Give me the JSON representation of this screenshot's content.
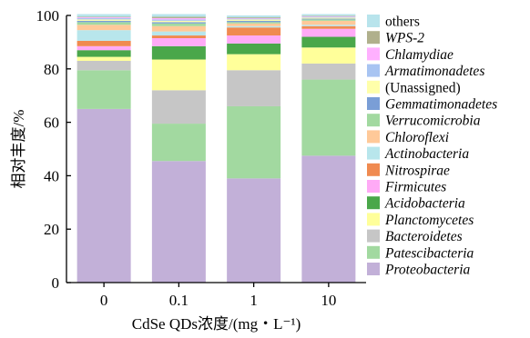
{
  "chart_data": {
    "type": "bar",
    "stacked": true,
    "title": "",
    "xlabel": "CdSe QDs浓度/(mg・L⁻¹)",
    "ylabel": "相对丰度/%",
    "categories": [
      "0",
      "0.1",
      "1",
      "10"
    ],
    "ylim": [
      0,
      100
    ],
    "yticks": [
      "0",
      "20",
      "40",
      "60",
      "80",
      "100"
    ],
    "legend_position": "right",
    "series": [
      {
        "name": "Proteobacteria",
        "italic": true,
        "color": "#c2b0d8",
        "values": [
          65.0,
          45.5,
          39.0,
          47.5
        ]
      },
      {
        "name": "Patescibacteria",
        "italic": true,
        "color": "#a2d9a0",
        "values": [
          14.5,
          14.0,
          27.0,
          28.5
        ]
      },
      {
        "name": "Bacteroidetes",
        "italic": true,
        "color": "#c6c6c6",
        "values": [
          3.5,
          12.5,
          13.5,
          6.0
        ]
      },
      {
        "name": "Planctomycetes",
        "italic": true,
        "color": "#ffff9a",
        "values": [
          1.5,
          11.5,
          6.0,
          6.0
        ]
      },
      {
        "name": "Acidobacteria",
        "italic": true,
        "color": "#4aa74a",
        "values": [
          2.5,
          5.0,
          4.0,
          4.0
        ]
      },
      {
        "name": "Firmicutes",
        "italic": true,
        "color": "#ffaaf6",
        "values": [
          1.5,
          3.0,
          3.0,
          3.0
        ]
      },
      {
        "name": "Nitrospirae",
        "italic": true,
        "color": "#f08a50",
        "values": [
          2.0,
          1.0,
          3.0,
          1.0
        ]
      },
      {
        "name": "Actinobacteria",
        "italic": true,
        "color": "#b8e6ec",
        "values": [
          4.0,
          1.5,
          0.5,
          0.5
        ]
      },
      {
        "name": "Chloroflexi",
        "italic": true,
        "color": "#ffc999",
        "values": [
          2.0,
          2.0,
          1.0,
          1.5
        ]
      },
      {
        "name": "Verrucomicrobia",
        "italic": true,
        "color": "#a2d9a0",
        "values": [
          1.0,
          1.0,
          0.5,
          0.5
        ]
      },
      {
        "name": "Gemmatimonadetes",
        "italic": true,
        "color": "#7a9ed6",
        "values": [
          0.5,
          0.5,
          0.5,
          0.3
        ]
      },
      {
        "name": "(Unassigned)",
        "italic": false,
        "color": "#ffffaa",
        "values": [
          0.5,
          0.5,
          0.5,
          0.4
        ]
      },
      {
        "name": "Armatimonadetes",
        "italic": true,
        "color": "#a8c4f2",
        "values": [
          0.5,
          0.5,
          0.3,
          0.3
        ]
      },
      {
        "name": "Chlamydiae",
        "italic": true,
        "color": "#ffb0ff",
        "values": [
          0.3,
          0.5,
          0.2,
          0.2
        ]
      },
      {
        "name": "WPS-2",
        "italic": true,
        "color": "#b0b08c",
        "values": [
          0.2,
          0.5,
          0.3,
          0.2
        ]
      },
      {
        "name": "others",
        "italic": false,
        "color": "#b8e4ec",
        "values": [
          1.0,
          1.0,
          0.7,
          0.6
        ]
      }
    ]
  }
}
